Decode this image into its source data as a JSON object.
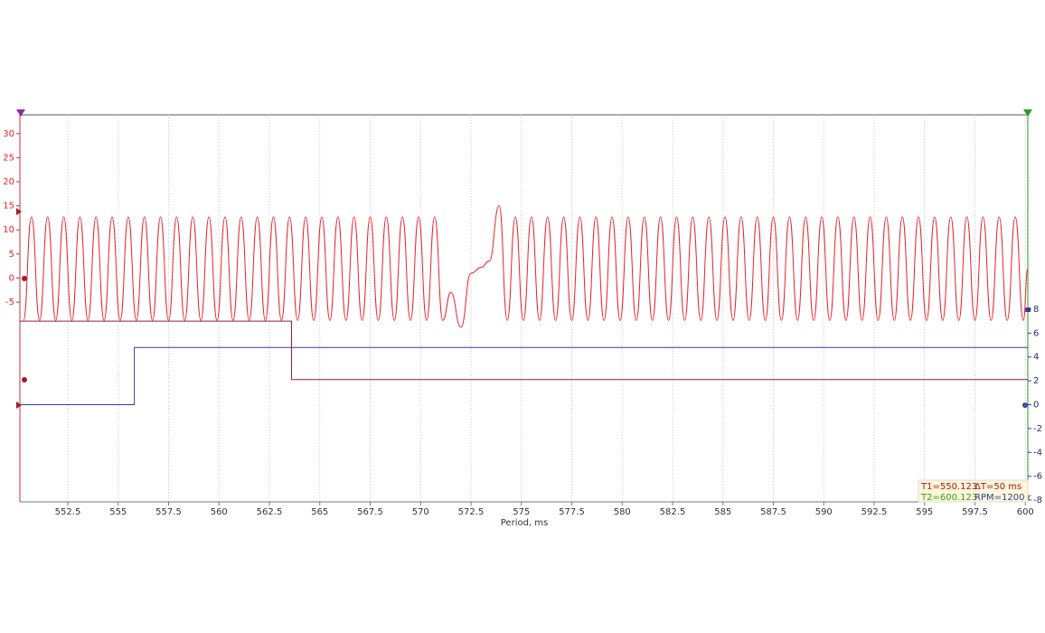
{
  "chart_data": {
    "type": "line",
    "xlabel": "Period, ms",
    "xlim": [
      550.123,
      600.123
    ],
    "xticks": [
      552.5,
      555,
      557.5,
      560,
      562.5,
      565,
      567.5,
      570,
      572.5,
      575,
      577.5,
      580,
      582.5,
      585,
      587.5,
      590,
      592.5,
      595,
      597.5,
      600
    ],
    "ylim": [
      -46.5,
      33.9
    ],
    "yticks": [
      30,
      25,
      20,
      15,
      10,
      5,
      0,
      -5
    ],
    "y2lim": [
      -8.15,
      24.3
    ],
    "y2ticks": [
      8,
      6,
      4,
      2,
      0,
      -2,
      -4,
      -6,
      -8
    ],
    "grid": true,
    "series": [
      {
        "color": "#e8232a",
        "axis": "y",
        "x": [
          550.3,
          550.7,
          551.1,
          551.5,
          551.9,
          552.3,
          552.7,
          553.1,
          553.5,
          553.9,
          554.3,
          554.7,
          555.1,
          555.5,
          555.9,
          556.3,
          556.7,
          557.1,
          557.5,
          557.9,
          558.3,
          558.7,
          559.1,
          559.5,
          559.9,
          560.3,
          560.7,
          561.1,
          561.5,
          561.9,
          562.3,
          562.7,
          563.1,
          563.5,
          563.9,
          564.3,
          564.7,
          565.1,
          565.5,
          565.9,
          566.3,
          566.7,
          567.1,
          567.5,
          567.9,
          568.3,
          568.7,
          569.1,
          569.5,
          569.9,
          570.3,
          570.7,
          571.1,
          571.5,
          572.0,
          572.5,
          573.0,
          573.4,
          573.9,
          574.3,
          574.7,
          575.1,
          575.5,
          575.9,
          576.3,
          576.7,
          577.1,
          577.5,
          577.9,
          578.3,
          578.7,
          579.1,
          579.5,
          579.9,
          580.3,
          580.7,
          581.1,
          581.5,
          581.9,
          582.3,
          582.7,
          583.1,
          583.5,
          583.9,
          584.3,
          584.7,
          585.1,
          585.5,
          585.9,
          586.3,
          586.7,
          587.1,
          587.5,
          587.9,
          588.3,
          588.7,
          589.1,
          589.5,
          589.9,
          590.3,
          590.7,
          591.1,
          591.5,
          591.9,
          592.3,
          592.7,
          593.1,
          593.5,
          593.9,
          594.3,
          594.7,
          595.1,
          595.5,
          595.9,
          596.3,
          596.7,
          597.1,
          597.5,
          597.9,
          598.3,
          598.7,
          599.1,
          599.5,
          599.9,
          600.123
        ],
        "values": [
          -8.8,
          12.7,
          -8.8,
          12.7,
          -8.8,
          12.7,
          -8.8,
          12.7,
          -8.8,
          12.7,
          -8.8,
          12.7,
          -8.8,
          12.7,
          -8.8,
          12.7,
          -8.8,
          12.7,
          -8.8,
          12.7,
          -8.8,
          12.7,
          -8.8,
          12.7,
          -8.8,
          12.7,
          -8.8,
          12.7,
          -8.8,
          12.7,
          -8.8,
          12.7,
          -8.8,
          12.7,
          -8.8,
          12.7,
          -8.8,
          12.7,
          -8.8,
          12.7,
          -8.8,
          12.7,
          -8.8,
          12.7,
          -8.8,
          12.7,
          -8.8,
          12.7,
          -8.8,
          12.7,
          -8.8,
          12.7,
          -8.8,
          -3.0,
          -10.2,
          1.0,
          2.2,
          3.5,
          15.0,
          -8.8,
          12.7,
          -8.8,
          12.7,
          -8.8,
          12.7,
          -8.8,
          12.7,
          -8.8,
          12.7,
          -8.8,
          12.7,
          -8.8,
          12.7,
          -8.8,
          12.7,
          -8.8,
          12.7,
          -8.8,
          12.7,
          -8.8,
          12.7,
          -8.8,
          12.7,
          -8.8,
          12.7,
          -8.8,
          12.7,
          -8.8,
          12.7,
          -8.8,
          12.7,
          -8.8,
          12.7,
          -8.8,
          12.7,
          -8.8,
          12.7,
          -8.8,
          12.7,
          -8.8,
          12.7,
          -8.8,
          12.7,
          -8.8,
          12.7,
          -8.8,
          12.7,
          -8.8,
          12.7,
          -8.8,
          12.7,
          -8.8,
          12.7,
          -8.8,
          12.7,
          -8.8,
          12.7,
          -8.8,
          12.7,
          -8.8,
          12.7,
          -8.8,
          12.7,
          -8.8,
          2.0
        ]
      },
      {
        "color": "#a01c2a",
        "axis": "y2",
        "x": [
          550.123,
          563.6,
          563.6,
          600.123
        ],
        "values": [
          7.0,
          7.0,
          2.1,
          2.1
        ]
      },
      {
        "color": "#3a3aa0",
        "axis": "y2",
        "x": [
          550.123,
          555.8,
          555.8,
          600.123
        ],
        "values": [
          0,
          0,
          4.8,
          4.8
        ]
      }
    ],
    "cursor_labels": [
      "T1=550.123",
      "ΔT=50 ms",
      "T2=600.123",
      "RPM=1200 r"
    ]
  }
}
